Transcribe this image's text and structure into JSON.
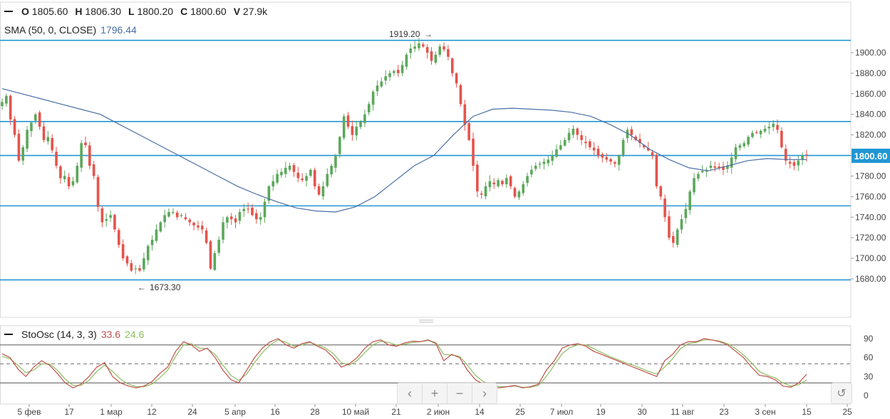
{
  "legend": {
    "ohlc": [
      {
        "key": "O",
        "value": "1805.60"
      },
      {
        "key": "H",
        "value": "1806.30"
      },
      {
        "key": "L",
        "value": "1800.20"
      },
      {
        "key": "C",
        "value": "1800.60"
      },
      {
        "key": "V",
        "value": "27.9k"
      }
    ],
    "sma_label": "SMA (50, 0, CLOSE)",
    "sma_value": "1796.44",
    "sto_label": "StoOsc (14, 3, 3)",
    "sto_k": "33.6",
    "sto_d": "24.6"
  },
  "current_price": "1800.60",
  "annotations": {
    "high": "1919.20",
    "low": "1673.30"
  },
  "controls": {
    "prev": "‹",
    "zoom_in": "+",
    "zoom_out": "−",
    "next": "›",
    "reset": "↺"
  },
  "colors": {
    "up": "#5ba85b",
    "down": "#e5534b",
    "sma": "#4a6fa5",
    "level": "#2196d3",
    "sto_k": "#c0504d",
    "sto_d": "#8fbc60"
  },
  "chart_data": [
    {
      "type": "candlestick",
      "ylim": [
        1610,
        1925
      ],
      "y_ticks": [
        "1900.00",
        "1880.00",
        "1860.00",
        "1840.00",
        "1820.00",
        "1800.00",
        "1780.00",
        "1760.00",
        "1740.00",
        "1720.00",
        "1700.00",
        "1680.00"
      ],
      "x_ticks": [
        "5 фев",
        "17",
        "1 мар",
        "12",
        "24",
        "5 апр",
        "16",
        "28",
        "10 май",
        "21",
        "2 июн",
        "14",
        "25",
        "7 июл",
        "19",
        "30",
        "11 авг",
        "23",
        "3 сен",
        "15",
        "25"
      ],
      "horizontal_levels": [
        1912,
        1833,
        1800,
        1751,
        1679
      ],
      "close": [
        1852,
        1858,
        1835,
        1820,
        1795,
        1808,
        1825,
        1832,
        1840,
        1828,
        1815,
        1818,
        1805,
        1790,
        1778,
        1780,
        1770,
        1775,
        1790,
        1812,
        1810,
        1790,
        1780,
        1750,
        1735,
        1738,
        1742,
        1728,
        1713,
        1700,
        1695,
        1688,
        1690,
        1688,
        1700,
        1712,
        1718,
        1728,
        1735,
        1742,
        1745,
        1745,
        1740,
        1742,
        1738,
        1735,
        1732,
        1730,
        1728,
        1715,
        1690,
        1705,
        1718,
        1735,
        1740,
        1738,
        1735,
        1745,
        1748,
        1748,
        1742,
        1738,
        1740,
        1755,
        1770,
        1775,
        1782,
        1784,
        1788,
        1790,
        1784,
        1778,
        1776,
        1780,
        1786,
        1770,
        1762,
        1770,
        1782,
        1790,
        1800,
        1818,
        1838,
        1828,
        1820,
        1828,
        1833,
        1840,
        1850,
        1862,
        1868,
        1872,
        1877,
        1880,
        1882,
        1880,
        1888,
        1898,
        1904,
        1906,
        1909,
        1906,
        1900,
        1892,
        1898,
        1906,
        1903,
        1896,
        1880,
        1870,
        1850,
        1830,
        1815,
        1790,
        1765,
        1762,
        1770,
        1775,
        1772,
        1776,
        1772,
        1778,
        1770,
        1760,
        1765,
        1772,
        1780,
        1786,
        1790,
        1792,
        1794,
        1796,
        1800,
        1806,
        1810,
        1815,
        1822,
        1826,
        1820,
        1815,
        1812,
        1808,
        1805,
        1800,
        1798,
        1796,
        1794,
        1792,
        1800,
        1815,
        1825,
        1820,
        1815,
        1812,
        1808,
        1805,
        1800,
        1770,
        1760,
        1740,
        1720,
        1715,
        1728,
        1738,
        1748,
        1765,
        1778,
        1782,
        1785,
        1786,
        1790,
        1788,
        1788,
        1786,
        1790,
        1798,
        1808,
        1810,
        1812,
        1818,
        1822,
        1822,
        1824,
        1826,
        1828,
        1831,
        1825,
        1808,
        1795,
        1792,
        1790,
        1795,
        1800,
        1800
      ],
      "sma": [
        1865,
        1860,
        1855,
        1850,
        1845,
        1840,
        1830,
        1820,
        1810,
        1800,
        1790,
        1780,
        1770,
        1762,
        1755,
        1749,
        1746,
        1745,
        1750,
        1760,
        1775,
        1790,
        1800,
        1820,
        1838,
        1845,
        1846,
        1845,
        1844,
        1842,
        1838,
        1830,
        1820,
        1806,
        1796,
        1788,
        1785,
        1790,
        1795,
        1797,
        1796,
        1796
      ],
      "stoch_k": [
        66,
        60,
        42,
        30,
        45,
        55,
        48,
        35,
        20,
        12,
        18,
        30,
        45,
        52,
        30,
        20,
        15,
        12,
        15,
        22,
        35,
        45,
        70,
        85,
        80,
        70,
        75,
        60,
        40,
        25,
        20,
        40,
        60,
        75,
        85,
        90,
        80,
        75,
        82,
        85,
        78,
        72,
        60,
        45,
        50,
        60,
        75,
        85,
        88,
        80,
        78,
        83,
        86,
        85,
        88,
        82,
        55,
        65,
        60,
        40,
        25,
        18,
        15,
        12,
        14,
        16,
        12,
        14,
        18,
        40,
        55,
        75,
        80,
        82,
        78,
        70,
        65,
        60,
        55,
        50,
        45,
        40,
        35,
        30,
        55,
        65,
        80,
        85,
        85,
        90,
        88,
        85,
        80,
        70,
        60,
        45,
        32,
        30,
        25,
        15,
        13,
        20,
        33.6
      ],
      "stoch_d": [
        62,
        58,
        48,
        36,
        40,
        50,
        50,
        40,
        26,
        16,
        16,
        24,
        38,
        48,
        38,
        26,
        18,
        14,
        14,
        18,
        28,
        40,
        62,
        80,
        82,
        75,
        74,
        65,
        48,
        32,
        24,
        34,
        52,
        68,
        80,
        88,
        84,
        78,
        80,
        84,
        80,
        75,
        66,
        52,
        48,
        55,
        68,
        80,
        86,
        84,
        80,
        81,
        84,
        85,
        87,
        84,
        65,
        64,
        62,
        48,
        32,
        22,
        17,
        14,
        14,
        15,
        13,
        13,
        16,
        30,
        48,
        66,
        76,
        80,
        80,
        74,
        68,
        62,
        57,
        52,
        48,
        43,
        38,
        34,
        45,
        58,
        74,
        82,
        84,
        88,
        88,
        86,
        82,
        74,
        64,
        52,
        38,
        32,
        28,
        20,
        15,
        17,
        24.6
      ]
    }
  ]
}
